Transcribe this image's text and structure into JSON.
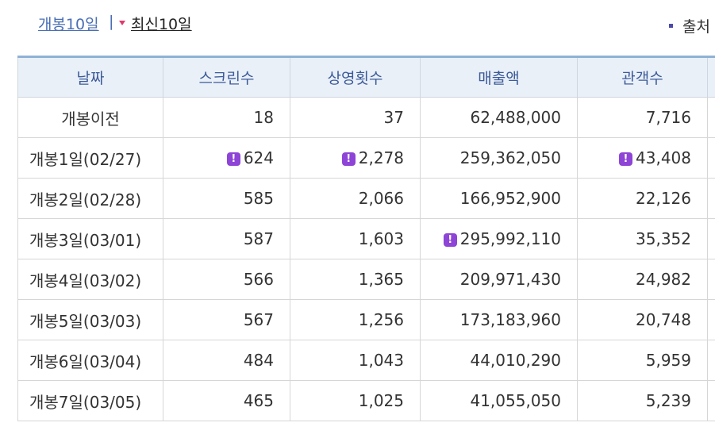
{
  "tabs": {
    "all_label": "개봉10일",
    "separator": "|",
    "recent_label": "최신10일",
    "source_label": "출처"
  },
  "table": {
    "headers": [
      "날짜",
      "스크린수",
      "상영횟수",
      "매출액",
      "관객수"
    ],
    "rows": [
      {
        "date": "개봉이전",
        "screens": "18",
        "shows": "37",
        "sales": "62,488,000",
        "audience": "7,716"
      },
      {
        "date": "개봉1일(02/27)",
        "screens": "624",
        "shows": "2,278",
        "sales": "259,362,050",
        "audience": "43,408"
      },
      {
        "date": "개봉2일(02/28)",
        "screens": "585",
        "shows": "2,066",
        "sales": "166,952,900",
        "audience": "22,126"
      },
      {
        "date": "개봉3일(03/01)",
        "screens": "587",
        "shows": "1,603",
        "sales": "295,992,110",
        "audience": "35,352"
      },
      {
        "date": "개봉4일(03/02)",
        "screens": "566",
        "shows": "1,365",
        "sales": "209,971,430",
        "audience": "24,982"
      },
      {
        "date": "개봉5일(03/03)",
        "screens": "567",
        "shows": "1,256",
        "sales": "173,183,960",
        "audience": "20,748"
      },
      {
        "date": "개봉6일(03/04)",
        "screens": "484",
        "shows": "1,043",
        "sales": "44,010,290",
        "audience": "5,959"
      },
      {
        "date": "개봉7일(03/05)",
        "screens": "465",
        "shows": "1,025",
        "sales": "41,055,050",
        "audience": "5,239"
      }
    ],
    "badge_symbol": "!"
  },
  "colors": {
    "header_bg": "#e9f0f8",
    "header_text": "#3d5a99",
    "badge": "#8e44d6",
    "link": "#4a6fb5",
    "arrow": "#e03a6d"
  }
}
